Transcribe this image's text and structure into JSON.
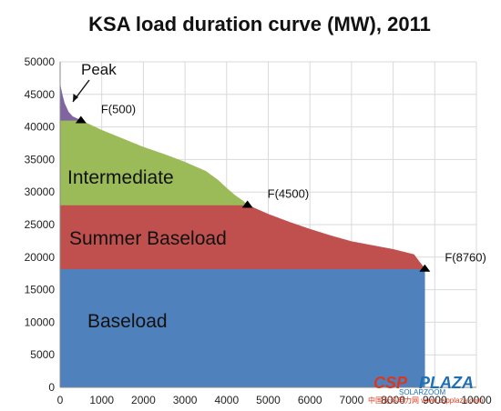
{
  "chart_data": {
    "type": "area",
    "title": "KSA load duration curve (MW), 2011",
    "xlabel": "",
    "ylabel": "",
    "xlim": [
      0,
      10000
    ],
    "ylim": [
      0,
      50000
    ],
    "x_ticks": [
      "0",
      "1000",
      "2000",
      "3000",
      "4000",
      "5000",
      "6000",
      "7000",
      "8000",
      "9000",
      "10000"
    ],
    "y_ticks": [
      "0",
      "5000",
      "10000",
      "15000",
      "20000",
      "25000",
      "30000",
      "35000",
      "40000",
      "45000",
      "50000"
    ],
    "grid": true,
    "curve": {
      "x": [
        0,
        50,
        100,
        200,
        300,
        400,
        500,
        700,
        1000,
        1500,
        2000,
        2500,
        3000,
        3500,
        3800,
        4000,
        4200,
        4400,
        4500,
        5000,
        5500,
        6000,
        6500,
        7000,
        7500,
        8000,
        8500,
        8760
      ],
      "y": [
        46500,
        45000,
        43700,
        42300,
        41600,
        41300,
        41000,
        40400,
        39500,
        38200,
        36900,
        35800,
        34600,
        33200,
        31800,
        30600,
        29500,
        28600,
        28000,
        26600,
        25400,
        24300,
        23300,
        22400,
        21800,
        21200,
        20400,
        18200
      ]
    },
    "regions": [
      {
        "name": "Baseload",
        "from": 0,
        "to": 18200,
        "color": "#4f81bd"
      },
      {
        "name": "Summer Baseload",
        "from": 18200,
        "to": 28000,
        "color": "#c0504d"
      },
      {
        "name": "Intermediate",
        "from": 28000,
        "to": 41000,
        "color": "#9bbb59"
      },
      {
        "name": "Peak",
        "from": 41000,
        "to": 46500,
        "color": "#8064a2"
      }
    ],
    "annotations": [
      {
        "label": "F(500)",
        "x": 500,
        "y": 41000
      },
      {
        "label": "F(4500)",
        "x": 4500,
        "y": 28000
      },
      {
        "label": "F(8760)",
        "x": 8760,
        "y": 18200
      }
    ],
    "region_labels": {
      "peak": "Peak",
      "intermediate": "Intermediate",
      "summer_baseload": "Summer Baseload",
      "baseload": "Baseload"
    }
  },
  "watermark": {
    "brand_left": "CSP",
    "brand_right": "PLAZA",
    "site": "SOLARZOOM",
    "sub": "中国光热电力网 www.cspplaza.com"
  }
}
